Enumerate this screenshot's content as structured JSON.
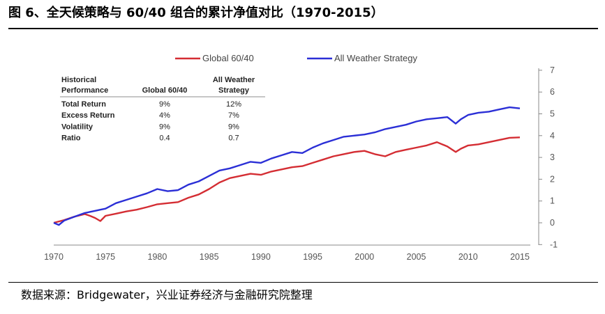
{
  "figure": {
    "title": "图 6、全天候策略与 60/40 组合的累计净值对比（1970-2015）",
    "source": "数据来源：Bridgewater，兴业证券经济与金融研究院整理"
  },
  "colors": {
    "red": "#d42d33",
    "blue": "#2b2fd6",
    "axis": "#888888",
    "text": "#555555"
  },
  "chart_data": {
    "type": "line",
    "title": "",
    "xlabel": "",
    "ylabel": "",
    "xlim": [
      1970,
      2015.5
    ],
    "ylim": [
      -1,
      7
    ],
    "xticks": [
      "1970",
      "1975",
      "1980",
      "1985",
      "1990",
      "1995",
      "2000",
      "2005",
      "2010",
      "2015"
    ],
    "yticks": [
      "7",
      "6",
      "5",
      "4",
      "3",
      "2",
      "1",
      "0",
      "-1"
    ],
    "y_axis_side": "right",
    "grid": false,
    "legend_position": "top",
    "series": [
      {
        "name": "Global 60/40",
        "color": "#d42d33",
        "x": [
          1970,
          1971,
          1972,
          1973,
          1973.5,
          1974,
          1974.5,
          1975,
          1976,
          1977,
          1978,
          1979,
          1980,
          1981,
          1982,
          1983,
          1984,
          1985,
          1986,
          1987,
          1988,
          1989,
          1990,
          1991,
          1992,
          1993,
          1994,
          1995,
          1996,
          1997,
          1998,
          1999,
          2000,
          2001,
          2002,
          2003,
          2004,
          2005,
          2006,
          2007,
          2008,
          2008.8,
          2009.3,
          2010,
          2011,
          2012,
          2013,
          2014,
          2015
        ],
        "values": [
          0.0,
          0.12,
          0.28,
          0.4,
          0.32,
          0.22,
          0.08,
          0.32,
          0.42,
          0.52,
          0.6,
          0.72,
          0.85,
          0.9,
          0.95,
          1.15,
          1.3,
          1.55,
          1.85,
          2.05,
          2.15,
          2.25,
          2.2,
          2.35,
          2.45,
          2.55,
          2.6,
          2.75,
          2.9,
          3.05,
          3.15,
          3.25,
          3.3,
          3.15,
          3.05,
          3.25,
          3.35,
          3.45,
          3.55,
          3.7,
          3.5,
          3.25,
          3.4,
          3.55,
          3.6,
          3.7,
          3.8,
          3.9,
          3.92
        ]
      },
      {
        "name": "All Weather Strategy",
        "color": "#2b2fd6",
        "x": [
          1970,
          1970.5,
          1971,
          1972,
          1973,
          1974,
          1974.5,
          1975,
          1976,
          1977,
          1978,
          1979,
          1980,
          1981,
          1982,
          1983,
          1984,
          1985,
          1986,
          1987,
          1988,
          1989,
          1990,
          1991,
          1992,
          1993,
          1994,
          1995,
          1996,
          1997,
          1998,
          1999,
          2000,
          2001,
          2002,
          2003,
          2004,
          2005,
          2006,
          2007,
          2008,
          2008.8,
          2009.3,
          2010,
          2011,
          2012,
          2013,
          2014,
          2015
        ],
        "values": [
          0.0,
          -0.1,
          0.1,
          0.28,
          0.45,
          0.55,
          0.6,
          0.65,
          0.9,
          1.05,
          1.2,
          1.35,
          1.55,
          1.45,
          1.5,
          1.75,
          1.9,
          2.15,
          2.4,
          2.5,
          2.65,
          2.8,
          2.75,
          2.95,
          3.1,
          3.25,
          3.2,
          3.45,
          3.65,
          3.8,
          3.95,
          4.0,
          4.05,
          4.15,
          4.3,
          4.4,
          4.5,
          4.65,
          4.75,
          4.8,
          4.85,
          4.55,
          4.75,
          4.95,
          5.05,
          5.1,
          5.2,
          5.3,
          5.25
        ]
      }
    ],
    "table": {
      "headers": [
        "Historical Performance",
        "Global 60/40",
        "All Weather Strategy"
      ],
      "rows": [
        [
          "Total Return",
          "9%",
          "12%"
        ],
        [
          "Excess Return",
          "4%",
          "7%"
        ],
        [
          "Volatility",
          "9%",
          "9%"
        ],
        [
          "Ratio",
          "0.4",
          "0.7"
        ]
      ]
    }
  }
}
